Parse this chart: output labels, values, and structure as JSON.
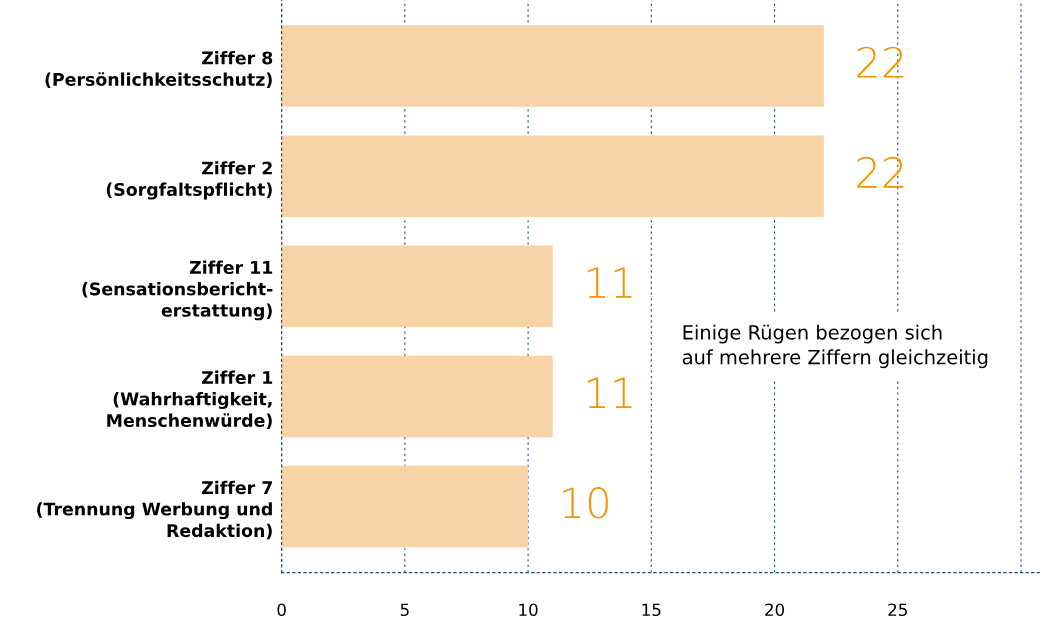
{
  "chart_data": {
    "type": "bar",
    "orientation": "horizontal",
    "categories": [
      "Ziffer 8\n(Persönlichkeitsschutz)",
      "Ziffer 2\n(Sorgfaltspflicht)",
      "Ziffer 11\n(Sensationsbericht-\nerstattung)",
      "Ziffer 1\n(Wahrhaftigkeit,\nMenschenwürde)",
      "Ziffer 7\n(Trennung Werbung und\nRedaktion)"
    ],
    "values": [
      22,
      22,
      11,
      11,
      10
    ],
    "color": "#f9d3a8",
    "data_labels": true,
    "xlim": [
      0,
      30.8
    ],
    "xticks": [
      0,
      5,
      10,
      15,
      20,
      25,
      {
        "value": 30,
        "label": null
      }
    ],
    "grid": "x",
    "annotations": [
      "Einige Rügen bezogen sich\nauf mehrere Ziffern gleichzeitig"
    ]
  }
}
